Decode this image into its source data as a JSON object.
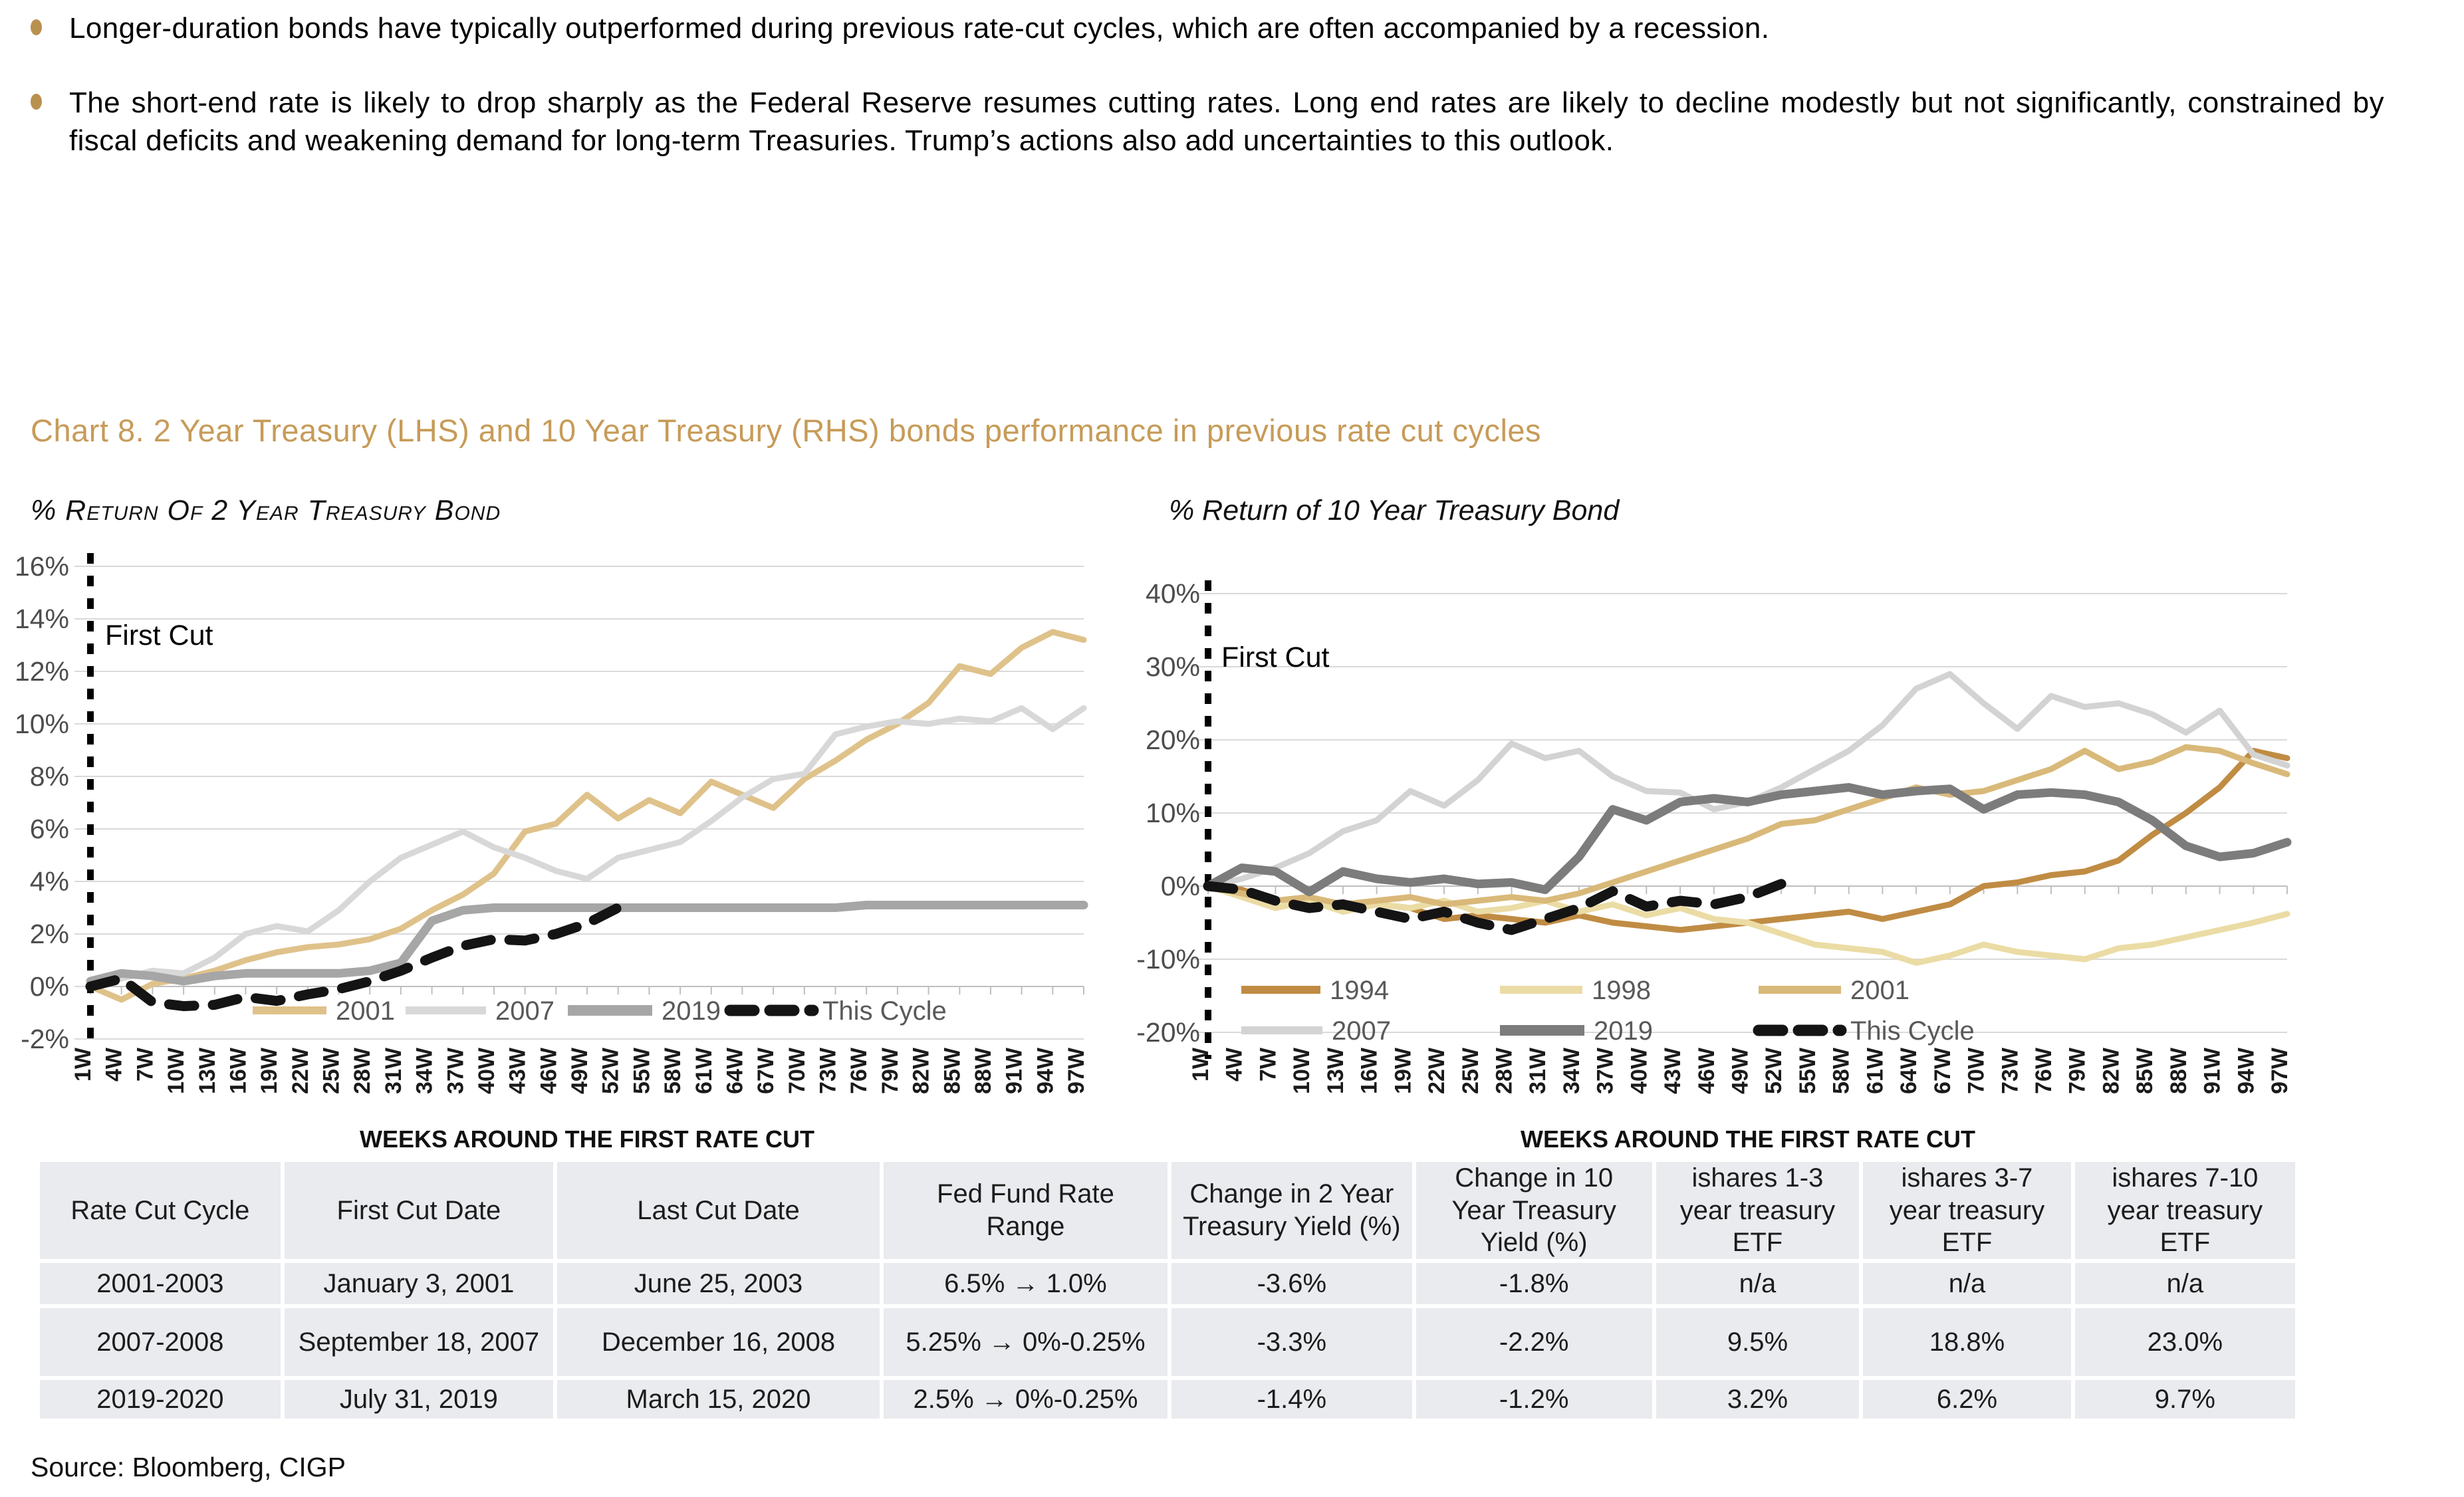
{
  "bullets": [
    {
      "text": "Longer-duration bonds have typically outperformed during previous rate-cut cycles, which are often accompanied by a recession."
    },
    {
      "text": "The short-end rate is likely to drop sharply as the Federal Reserve resumes cutting rates. Long end rates are likely to decline modestly but not significantly, constrained by fiscal deficits and weakening demand for long-term Treasuries. Trump’s actions also add uncertainties to this outlook."
    }
  ],
  "chart_title": "Chart 8. 2 Year Treasury (LHS) and 10 Year Treasury (RHS) bonds performance in previous rate cut cycles",
  "source": "Source: Bloomberg, CIGP",
  "colors": {
    "accent_gold": "#c79b58",
    "bullet_gold": "#b9914f",
    "gridline": "#d9d9d9",
    "axis_line": "#bfbfbf",
    "axis_label": "#4d4d4d",
    "legend_text": "#595959",
    "table_cell_bg": "#e9ebee"
  },
  "chart_data": [
    {
      "type": "line",
      "title": "% Return Of 2 Year Treasury Bond",
      "xlabel": "WEEKS AROUND THE FIRST RATE CUT",
      "ylabel": "",
      "annotation": "First Cut",
      "grid": true,
      "legend_position": "inside-bottom",
      "ylim": [
        -2,
        16
      ],
      "ytick_step": 2,
      "x_categories": [
        "1W",
        "4W",
        "7W",
        "10W",
        "13W",
        "16W",
        "19W",
        "22W",
        "25W",
        "28W",
        "31W",
        "34W",
        "37W",
        "40W",
        "43W",
        "46W",
        "49W",
        "52W",
        "55W",
        "58W",
        "61W",
        "64W",
        "67W",
        "70W",
        "73W",
        "76W",
        "79W",
        "82W",
        "85W",
        "88W",
        "91W",
        "94W",
        "97W"
      ],
      "series": [
        {
          "name": "2001",
          "color": "#dfc28a",
          "values": [
            0,
            -0.5,
            0.1,
            0.3,
            0.6,
            1.0,
            1.3,
            1.5,
            1.6,
            1.8,
            2.2,
            2.9,
            3.5,
            4.3,
            5.9,
            6.2,
            7.3,
            6.4,
            7.1,
            6.6,
            7.8,
            7.3,
            6.8,
            7.9,
            8.6,
            9.4,
            10.0,
            10.8,
            12.2,
            11.9,
            12.9,
            13.5,
            13.2
          ]
        },
        {
          "name": "2007",
          "color": "#d8d8d8",
          "values": [
            0,
            0.3,
            0.6,
            0.5,
            1.1,
            2.0,
            2.3,
            2.1,
            2.9,
            4.0,
            4.9,
            5.4,
            5.9,
            5.3,
            4.9,
            4.4,
            4.1,
            4.9,
            5.2,
            5.5,
            6.3,
            7.2,
            7.9,
            8.1,
            9.6,
            9.9,
            10.1,
            10.0,
            10.2,
            10.1,
            10.6,
            9.8,
            10.6
          ]
        },
        {
          "name": "2019",
          "color": "#a6a6a6",
          "values": [
            0.2,
            0.5,
            0.4,
            0.2,
            0.4,
            0.5,
            0.5,
            0.5,
            0.5,
            0.6,
            0.9,
            2.5,
            2.9,
            3.0,
            3.0,
            3.0,
            3.0,
            3.0,
            3.0,
            3.0,
            3.0,
            3.0,
            3.0,
            3.0,
            3.0,
            3.1,
            3.1,
            3.1,
            3.1,
            3.1,
            3.1,
            3.1,
            3.1
          ]
        },
        {
          "name": "This Cycle",
          "color": "#141414",
          "dashed": true,
          "values": [
            0,
            0.3,
            -0.6,
            -0.75,
            -0.7,
            -0.4,
            -0.55,
            -0.3,
            -0.1,
            0.2,
            0.6,
            1.1,
            1.55,
            1.8,
            1.75,
            2.0,
            2.4,
            3.0
          ]
        }
      ]
    },
    {
      "type": "line",
      "title": "% Return of 10 Year Treasury Bond",
      "xlabel": "WEEKS AROUND THE FIRST RATE CUT",
      "ylabel": "",
      "annotation": "First Cut",
      "grid": true,
      "legend_position": "inside-bottom",
      "ylim": [
        -20,
        40
      ],
      "ytick_step": 10,
      "x_categories": [
        "1W",
        "4W",
        "7W",
        "10W",
        "13W",
        "16W",
        "19W",
        "22W",
        "25W",
        "28W",
        "31W",
        "34W",
        "37W",
        "40W",
        "43W",
        "46W",
        "49W",
        "52W",
        "55W",
        "58W",
        "61W",
        "64W",
        "67W",
        "70W",
        "73W",
        "76W",
        "79W",
        "82W",
        "85W",
        "88W",
        "91W",
        "94W",
        "97W"
      ],
      "series": [
        {
          "name": "1994",
          "color": "#c08c44",
          "values": [
            0,
            -0.5,
            -2,
            -1.5,
            -3.5,
            -2.5,
            -3,
            -4.5,
            -4,
            -4.5,
            -5,
            -4,
            -5,
            -5.5,
            -6,
            -5.5,
            -5,
            -4.5,
            -4,
            -3.5,
            -4.5,
            -3.5,
            -2.5,
            0,
            0.5,
            1.5,
            2,
            3.5,
            7,
            10,
            13.5,
            18.5,
            17.5
          ]
        },
        {
          "name": "1998",
          "color": "#ebdca5",
          "values": [
            0,
            -1.5,
            -3,
            -2,
            -3.5,
            -2.5,
            -3,
            -2,
            -3.5,
            -3,
            -2,
            -3.5,
            -2.5,
            -4,
            -3,
            -4.5,
            -5,
            -6.5,
            -8,
            -8.5,
            -9,
            -10.5,
            -9.5,
            -8,
            -9,
            -9.5,
            -10,
            -8.5,
            -8,
            -7,
            -6,
            -5,
            -3.8
          ]
        },
        {
          "name": "2001",
          "color": "#d9b979",
          "values": [
            0,
            -1,
            -2,
            -1.5,
            -2.5,
            -2,
            -1.5,
            -2.5,
            -2,
            -1.5,
            -2,
            -1,
            0.5,
            2,
            3.5,
            5,
            6.5,
            8.5,
            9,
            10.5,
            12,
            13.5,
            12.5,
            13,
            14.5,
            16,
            18.5,
            16,
            17,
            19,
            18.5,
            16.8,
            15.3
          ]
        },
        {
          "name": "2007",
          "color": "#d3d3d3",
          "values": [
            0,
            1,
            2.5,
            4.5,
            7.5,
            9,
            13,
            11,
            14.5,
            19.5,
            17.5,
            18.5,
            15,
            13,
            12.8,
            10.5,
            11.5,
            13.5,
            16,
            18.5,
            22,
            27,
            29,
            25,
            21.5,
            26,
            24.5,
            25,
            23.5,
            21,
            24,
            18,
            16.5
          ]
        },
        {
          "name": "2019",
          "color": "#7c7c7c",
          "values": [
            0,
            2.5,
            2,
            -0.8,
            2,
            1,
            0.5,
            1,
            0.3,
            0.5,
            -0.5,
            4,
            10.5,
            9,
            11.5,
            12,
            11.5,
            12.5,
            13,
            13.5,
            12.5,
            13,
            13.3,
            10.5,
            12.5,
            12.8,
            12.5,
            11.5,
            9,
            5.5,
            4,
            4.5,
            6
          ]
        },
        {
          "name": "This Cycle",
          "color": "#141414",
          "dashed": true,
          "values": [
            0,
            -0.5,
            -2,
            -3,
            -2.5,
            -3.5,
            -4.5,
            -3.5,
            -5,
            -6,
            -4.5,
            -3,
            -0.7,
            -2.8,
            -2,
            -2.5,
            -1.5,
            0.3
          ]
        }
      ]
    }
  ],
  "table": {
    "columns": [
      "Rate Cut Cycle",
      "First Cut Date",
      "Last Cut Date",
      "Fed Fund Rate Range",
      "Change in 2 Year Treasury Yield (%)",
      "Change in 10 Year Treasury Yield (%)",
      "ishares 1-3 year treasury ETF",
      "ishares 3-7 year treasury ETF",
      "ishares 7-10 year treasury ETF"
    ],
    "rows": [
      [
        "2001-2003",
        "January 3, 2001",
        "June 25, 2003",
        "6.5% → 1.0%",
        "-3.6%",
        "-1.8%",
        "n/a",
        "n/a",
        "n/a"
      ],
      [
        "2007-2008",
        "September 18, 2007",
        "December 16, 2008",
        "5.25% → 0%-0.25%",
        "-3.3%",
        "-2.2%",
        "9.5%",
        "18.8%",
        "23.0%"
      ],
      [
        "2019-2020",
        "July 31, 2019",
        "March 15, 2020",
        "2.5% → 0%-0.25%",
        "-1.4%",
        "-1.2%",
        "3.2%",
        "6.2%",
        "9.7%"
      ]
    ]
  }
}
